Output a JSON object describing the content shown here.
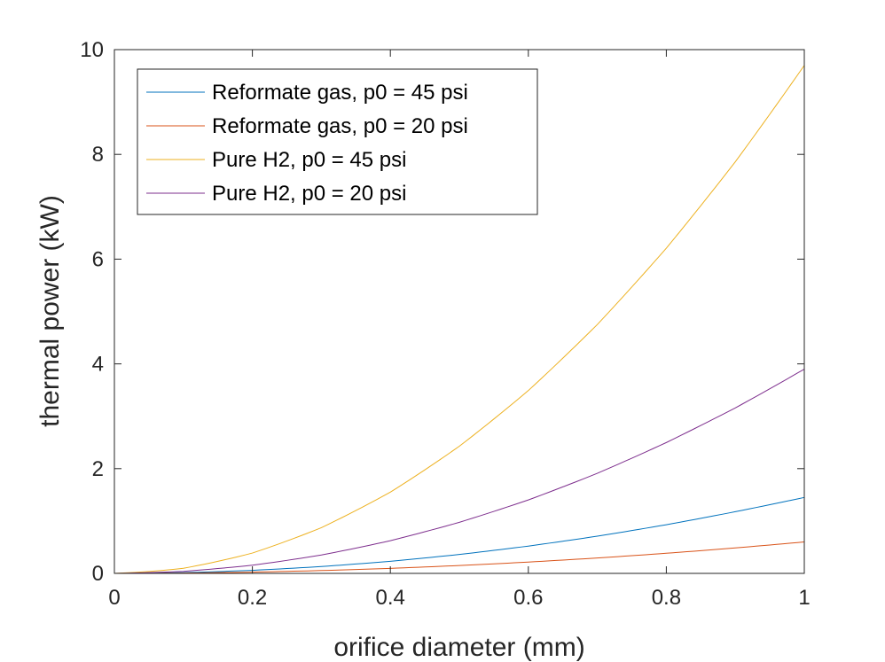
{
  "chart_data": {
    "type": "line",
    "title": "",
    "xlabel": "orifice diameter (mm)",
    "ylabel": "thermal power (kW)",
    "xlim": [
      0,
      1
    ],
    "ylim": [
      0,
      10
    ],
    "x_ticks": [
      "0",
      "0.2",
      "0.4",
      "0.6",
      "0.8",
      "1"
    ],
    "y_ticks": [
      "0",
      "2",
      "4",
      "6",
      "8",
      "10"
    ],
    "grid": false,
    "legend_position": "top-left",
    "x": [
      0,
      0.1,
      0.2,
      0.3,
      0.4,
      0.5,
      0.6,
      0.7,
      0.8,
      0.9,
      1.0
    ],
    "series": [
      {
        "name": "Reformate gas, p0 = 45 psi",
        "color": "#0072BD",
        "values": [
          0,
          0.015,
          0.058,
          0.13,
          0.23,
          0.36,
          0.52,
          0.71,
          0.93,
          1.18,
          1.45
        ]
      },
      {
        "name": "Reformate gas, p0 = 20 psi",
        "color": "#D95319",
        "values": [
          0,
          0.006,
          0.024,
          0.054,
          0.096,
          0.15,
          0.216,
          0.294,
          0.384,
          0.486,
          0.6
        ]
      },
      {
        "name": "Pure H2, p0 = 45 psi",
        "color": "#EDB120",
        "values": [
          0,
          0.097,
          0.388,
          0.873,
          1.55,
          2.43,
          3.49,
          4.75,
          6.21,
          7.86,
          9.7
        ]
      },
      {
        "name": "Pure H2, p0 = 20 psi",
        "color": "#7E2F8E",
        "values": [
          0,
          0.039,
          0.156,
          0.351,
          0.624,
          0.975,
          1.4,
          1.91,
          2.5,
          3.16,
          3.9
        ]
      }
    ]
  }
}
